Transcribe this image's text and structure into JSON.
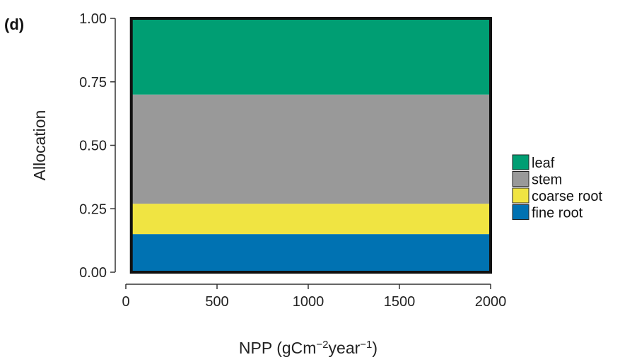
{
  "chart_data": {
    "type": "area",
    "panel_label": "(d)",
    "xlabel": {
      "base": "NPP (gCm",
      "sup1": "−2",
      "mid": "year",
      "sup2": "−1",
      "end": ")"
    },
    "ylabel": "Allocation",
    "xlim": [
      0,
      2000
    ],
    "ylim": [
      0,
      1
    ],
    "x_data_range": [
      30,
      2000
    ],
    "x_ticks": [
      {
        "value": 0,
        "label": "0"
      },
      {
        "value": 500,
        "label": "500"
      },
      {
        "value": 1000,
        "label": "1000"
      },
      {
        "value": 1500,
        "label": "1500"
      },
      {
        "value": 2000,
        "label": "2000"
      }
    ],
    "y_ticks": [
      {
        "value": 0,
        "label": "0.00"
      },
      {
        "value": 0.25,
        "label": "0.25"
      },
      {
        "value": 0.5,
        "label": "0.50"
      },
      {
        "value": 0.75,
        "label": "0.75"
      },
      {
        "value": 1,
        "label": "1.00"
      }
    ],
    "stacked": true,
    "grid": false,
    "legend_position": "right",
    "series": [
      {
        "name": "fine root",
        "color": "#0072B2",
        "values": [
          0.15,
          0.15
        ]
      },
      {
        "name": "coarse root",
        "color": "#F0E442",
        "values": [
          0.12,
          0.12
        ]
      },
      {
        "name": "stem",
        "color": "#999999",
        "values": [
          0.43,
          0.43
        ]
      },
      {
        "name": "leaf",
        "color": "#009E73",
        "values": [
          0.3,
          0.3
        ]
      }
    ],
    "legend_order": [
      "leaf",
      "stem",
      "coarse root",
      "fine root"
    ]
  }
}
